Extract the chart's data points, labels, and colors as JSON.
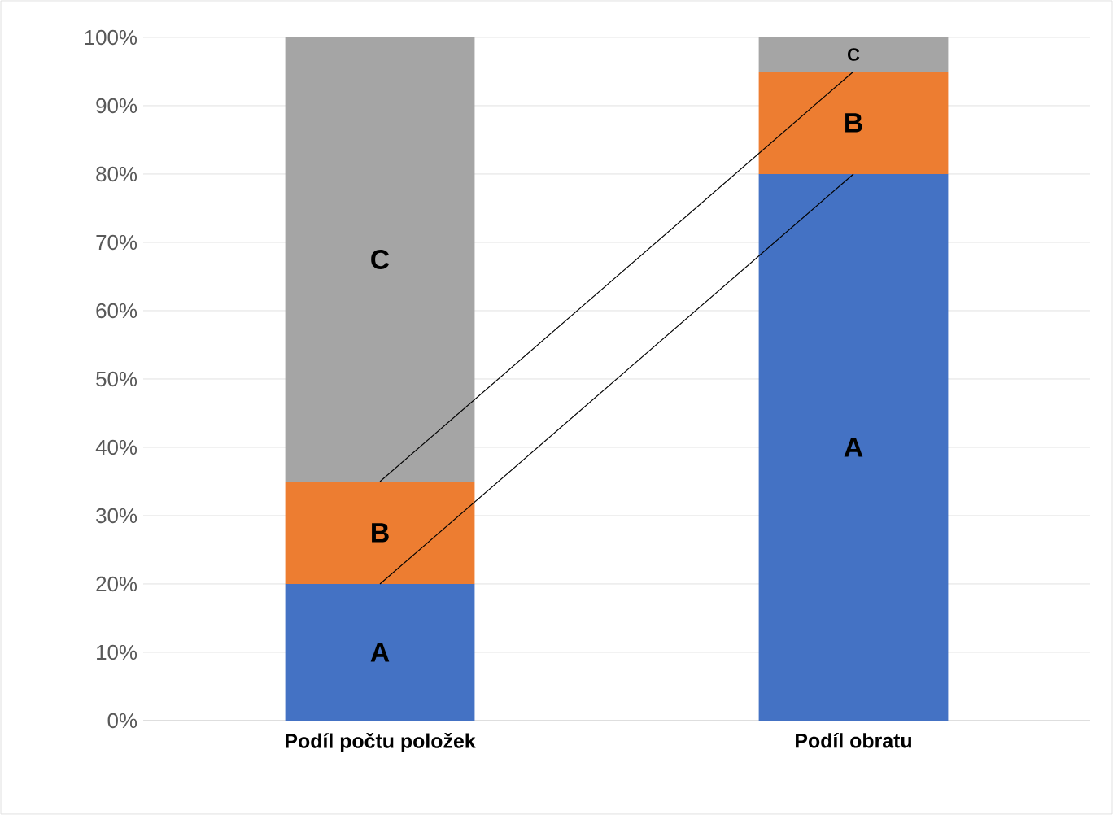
{
  "chart_data": {
    "type": "bar",
    "stacked": true,
    "categories": [
      "Podíl počtu položek",
      "Podíl obratu"
    ],
    "series": [
      {
        "name": "A",
        "color": "#4472c4",
        "values": [
          20,
          80
        ]
      },
      {
        "name": "B",
        "color": "#ed7d31",
        "values": [
          15,
          15
        ]
      },
      {
        "name": "C",
        "color": "#a5a5a5",
        "values": [
          65,
          5
        ]
      },
      {
        "type": "line",
        "color": "#000000",
        "values": [
          20,
          80
        ]
      },
      {
        "type": "line",
        "color": "#000000",
        "values": [
          35,
          95
        ]
      }
    ],
    "ylim": [
      0,
      100
    ],
    "yticks": [
      {
        "value": 0,
        "label": "0%"
      },
      {
        "value": 10,
        "label": "10%"
      },
      {
        "value": 20,
        "label": "20%"
      },
      {
        "value": 30,
        "label": "30%"
      },
      {
        "value": 40,
        "label": "40%"
      },
      {
        "value": 50,
        "label": "50%"
      },
      {
        "value": 60,
        "label": "60%"
      },
      {
        "value": 70,
        "label": "70%"
      },
      {
        "value": 80,
        "label": "80%"
      },
      {
        "value": 90,
        "label": "90%"
      },
      {
        "value": 100,
        "label": "100%"
      }
    ],
    "grid": "y"
  }
}
